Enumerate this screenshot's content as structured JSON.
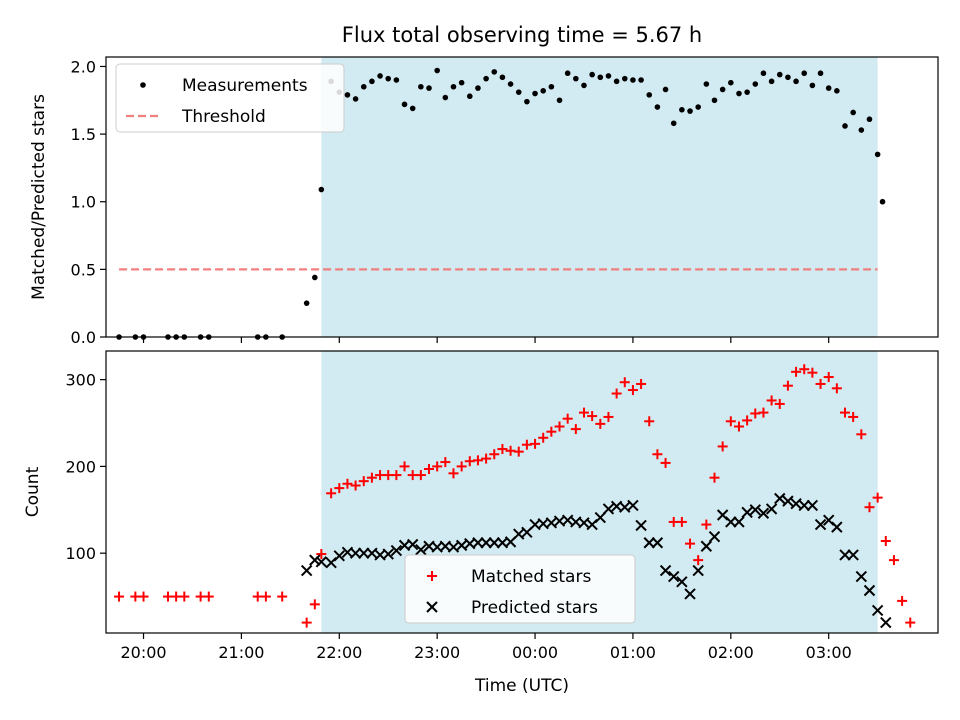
{
  "chart_data": [
    {
      "type": "scatter",
      "title": "Flux total observing time = 5.67 h",
      "xlabel": "",
      "ylabel": "Matched/Predicted stars",
      "xlim": [
        "19:37",
        "04:07"
      ],
      "ylim": [
        0,
        2.07
      ],
      "yticks": [
        "0.0",
        "0.5",
        "1.0",
        "1.5",
        "2.0"
      ],
      "shaded_region": [
        "21:49",
        "03:30"
      ],
      "shaded_color": "#add8e6",
      "legend": {
        "placement": "top-left",
        "entries": [
          "Measurements",
          "Threshold"
        ]
      },
      "threshold": {
        "name": "Threshold",
        "value": 0.5,
        "x_range": [
          "19:45",
          "03:30"
        ],
        "color": "#f08080"
      },
      "series": [
        {
          "name": "Measurements",
          "color": "#000000",
          "points": [
            [
              "19:45",
              0
            ],
            [
              "19:55",
              0
            ],
            [
              "20:00",
              0
            ],
            [
              "20:15",
              0
            ],
            [
              "20:20",
              0
            ],
            [
              "20:25",
              0
            ],
            [
              "20:35",
              0
            ],
            [
              "20:40",
              0
            ],
            [
              "21:10",
              0
            ],
            [
              "21:15",
              0
            ],
            [
              "21:25",
              0
            ],
            [
              "21:40",
              0.25
            ],
            [
              "21:45",
              0.44
            ],
            [
              "21:49",
              1.09
            ],
            [
              "21:55",
              1.89
            ],
            [
              "22:00",
              1.81
            ],
            [
              "22:05",
              1.79
            ],
            [
              "22:10",
              1.76
            ],
            [
              "22:15",
              1.85
            ],
            [
              "22:20",
              1.89
            ],
            [
              "22:25",
              1.93
            ],
            [
              "22:30",
              1.91
            ],
            [
              "22:35",
              1.9
            ],
            [
              "22:40",
              1.72
            ],
            [
              "22:45",
              1.69
            ],
            [
              "22:50",
              1.85
            ],
            [
              "22:55",
              1.84
            ],
            [
              "23:00",
              1.97
            ],
            [
              "23:05",
              1.77
            ],
            [
              "23:10",
              1.85
            ],
            [
              "23:15",
              1.88
            ],
            [
              "23:20",
              1.78
            ],
            [
              "23:25",
              1.84
            ],
            [
              "23:30",
              1.91
            ],
            [
              "23:35",
              1.96
            ],
            [
              "23:40",
              1.92
            ],
            [
              "23:45",
              1.87
            ],
            [
              "23:50",
              1.81
            ],
            [
              "23:55",
              1.74
            ],
            [
              "00:00",
              1.8
            ],
            [
              "00:05",
              1.82
            ],
            [
              "00:10",
              1.85
            ],
            [
              "00:15",
              1.75
            ],
            [
              "00:20",
              1.95
            ],
            [
              "00:25",
              1.91
            ],
            [
              "00:30",
              1.86
            ],
            [
              "00:35",
              1.94
            ],
            [
              "00:40",
              1.92
            ],
            [
              "00:45",
              1.93
            ],
            [
              "00:50",
              1.89
            ],
            [
              "00:55",
              1.91
            ],
            [
              "01:00",
              1.9
            ],
            [
              "01:05",
              1.9
            ],
            [
              "01:10",
              1.79
            ],
            [
              "01:15",
              1.7
            ],
            [
              "01:20",
              1.83
            ],
            [
              "01:25",
              1.58
            ],
            [
              "01:30",
              1.68
            ],
            [
              "01:35",
              1.67
            ],
            [
              "01:40",
              1.7
            ],
            [
              "01:45",
              1.87
            ],
            [
              "01:50",
              1.75
            ],
            [
              "01:55",
              1.83
            ],
            [
              "02:00",
              1.88
            ],
            [
              "02:05",
              1.8
            ],
            [
              "02:10",
              1.81
            ],
            [
              "02:15",
              1.87
            ],
            [
              "02:20",
              1.95
            ],
            [
              "02:25",
              1.89
            ],
            [
              "02:30",
              1.94
            ],
            [
              "02:35",
              1.92
            ],
            [
              "02:40",
              1.89
            ],
            [
              "02:45",
              1.95
            ],
            [
              "02:50",
              1.86
            ],
            [
              "02:55",
              1.95
            ],
            [
              "03:00",
              1.84
            ],
            [
              "03:05",
              1.82
            ],
            [
              "03:10",
              1.56
            ],
            [
              "03:15",
              1.66
            ],
            [
              "03:20",
              1.53
            ],
            [
              "03:25",
              1.61
            ],
            [
              "03:30",
              1.35
            ],
            [
              "03:33",
              1.0
            ]
          ]
        }
      ]
    },
    {
      "type": "scatter",
      "title": "",
      "xlabel": "Time (UTC)",
      "ylabel": "Count",
      "xlim": [
        "19:37",
        "04:07"
      ],
      "ylim": [
        8,
        333
      ],
      "yticks": [
        "100",
        "200",
        "300"
      ],
      "xticks": [
        "20:00",
        "21:00",
        "22:00",
        "23:00",
        "00:00",
        "01:00",
        "02:00",
        "03:00"
      ],
      "shaded_region": [
        "21:49",
        "03:30"
      ],
      "shaded_color": "#add8e6",
      "legend": {
        "placement": "bottom-center",
        "entries": [
          "Matched stars",
          "Predicted stars"
        ]
      },
      "series": [
        {
          "name": "Matched stars",
          "marker": "+",
          "color": "#ff0000",
          "points": [
            [
              "19:45",
              50
            ],
            [
              "19:55",
              50
            ],
            [
              "20:00",
              50
            ],
            [
              "20:15",
              50
            ],
            [
              "20:20",
              50
            ],
            [
              "20:25",
              50
            ],
            [
              "20:35",
              50
            ],
            [
              "20:40",
              50
            ],
            [
              "21:10",
              50
            ],
            [
              "21:15",
              50
            ],
            [
              "21:25",
              50
            ],
            [
              "21:40",
              20
            ],
            [
              "21:45",
              41
            ],
            [
              "21:49",
              99
            ],
            [
              "21:55",
              169
            ],
            [
              "22:00",
              175
            ],
            [
              "22:05",
              180
            ],
            [
              "22:10",
              178
            ],
            [
              "22:15",
              183
            ],
            [
              "22:20",
              187
            ],
            [
              "22:25",
              190
            ],
            [
              "22:30",
              190
            ],
            [
              "22:35",
              190
            ],
            [
              "22:40",
              200
            ],
            [
              "22:45",
              190
            ],
            [
              "22:50",
              190
            ],
            [
              "22:55",
              197
            ],
            [
              "23:00",
              200
            ],
            [
              "23:05",
              205
            ],
            [
              "23:10",
              192
            ],
            [
              "23:15",
              200
            ],
            [
              "23:20",
              206
            ],
            [
              "23:25",
              207
            ],
            [
              "23:30",
              209
            ],
            [
              "23:35",
              214
            ],
            [
              "23:40",
              220
            ],
            [
              "23:45",
              218
            ],
            [
              "23:50",
              217
            ],
            [
              "23:55",
              225
            ],
            [
              "00:00",
              226
            ],
            [
              "00:05",
              233
            ],
            [
              "00:10",
              240
            ],
            [
              "00:15",
              246
            ],
            [
              "00:20",
              255
            ],
            [
              "00:25",
              243
            ],
            [
              "00:30",
              262
            ],
            [
              "00:35",
              258
            ],
            [
              "00:40",
              249
            ],
            [
              "00:45",
              257
            ],
            [
              "00:50",
              284
            ],
            [
              "00:55",
              297
            ],
            [
              "01:00",
              288
            ],
            [
              "01:05",
              295
            ],
            [
              "01:10",
              252
            ],
            [
              "01:15",
              214
            ],
            [
              "01:20",
              204
            ],
            [
              "01:25",
              136
            ],
            [
              "01:30",
              136
            ],
            [
              "01:35",
              111
            ],
            [
              "01:40",
              92
            ],
            [
              "01:45",
              133
            ],
            [
              "01:50",
              187
            ],
            [
              "01:55",
              223
            ],
            [
              "02:00",
              252
            ],
            [
              "02:05",
              246
            ],
            [
              "02:10",
              253
            ],
            [
              "02:15",
              261
            ],
            [
              "02:20",
              262
            ],
            [
              "02:25",
              276
            ],
            [
              "02:30",
              272
            ],
            [
              "02:35",
              293
            ],
            [
              "02:40",
              309
            ],
            [
              "02:45",
              312
            ],
            [
              "02:50",
              308
            ],
            [
              "02:55",
              295
            ],
            [
              "03:00",
              303
            ],
            [
              "03:05",
              290
            ],
            [
              "03:10",
              262
            ],
            [
              "03:15",
              257
            ],
            [
              "03:20",
              237
            ],
            [
              "03:25",
              153
            ],
            [
              "03:30",
              164
            ],
            [
              "03:35",
              114
            ],
            [
              "03:40",
              92
            ],
            [
              "03:45",
              45
            ],
            [
              "03:50",
              20
            ]
          ]
        },
        {
          "name": "Predicted stars",
          "marker": "x",
          "color": "#000000",
          "points": [
            [
              "21:40",
              80
            ],
            [
              "21:45",
              92
            ],
            [
              "21:49",
              90
            ],
            [
              "21:55",
              89
            ],
            [
              "22:00",
              97
            ],
            [
              "22:05",
              101
            ],
            [
              "22:10",
              100
            ],
            [
              "22:15",
              100
            ],
            [
              "22:20",
              100
            ],
            [
              "22:25",
              98
            ],
            [
              "22:30",
              99
            ],
            [
              "22:35",
              103
            ],
            [
              "22:40",
              109
            ],
            [
              "22:45",
              110
            ],
            [
              "22:50",
              104
            ],
            [
              "22:55",
              108
            ],
            [
              "23:00",
              107
            ],
            [
              "23:05",
              108
            ],
            [
              "23:10",
              107
            ],
            [
              "23:15",
              109
            ],
            [
              "23:20",
              111
            ],
            [
              "23:25",
              112
            ],
            [
              "23:30",
              112
            ],
            [
              "23:35",
              112
            ],
            [
              "23:40",
              112
            ],
            [
              "23:45",
              113
            ],
            [
              "23:50",
              122
            ],
            [
              "23:55",
              124
            ],
            [
              "00:00",
              133
            ],
            [
              "00:05",
              134
            ],
            [
              "00:10",
              135
            ],
            [
              "00:15",
              137
            ],
            [
              "00:20",
              138
            ],
            [
              "00:25",
              136
            ],
            [
              "00:30",
              135
            ],
            [
              "00:35",
              133
            ],
            [
              "00:40",
              141
            ],
            [
              "00:45",
              151
            ],
            [
              "00:50",
              154
            ],
            [
              "00:55",
              153
            ],
            [
              "01:00",
              155
            ],
            [
              "01:05",
              132
            ],
            [
              "01:10",
              112
            ],
            [
              "01:15",
              112
            ],
            [
              "01:20",
              80
            ],
            [
              "01:25",
              73
            ],
            [
              "01:30",
              67
            ],
            [
              "01:35",
              53
            ],
            [
              "01:40",
              80
            ],
            [
              "01:45",
              108
            ],
            [
              "01:50",
              119
            ],
            [
              "01:55",
              144
            ],
            [
              "02:00",
              136
            ],
            [
              "02:05",
              136
            ],
            [
              "02:10",
              147
            ],
            [
              "02:15",
              150
            ],
            [
              "02:20",
              146
            ],
            [
              "02:25",
              151
            ],
            [
              "02:30",
              163
            ],
            [
              "02:35",
              160
            ],
            [
              "02:40",
              157
            ],
            [
              "02:45",
              155
            ],
            [
              "02:50",
              155
            ],
            [
              "02:55",
              133
            ],
            [
              "03:00",
              138
            ],
            [
              "03:05",
              130
            ],
            [
              "03:10",
              98
            ],
            [
              "03:15",
              98
            ],
            [
              "03:20",
              73
            ],
            [
              "03:25",
              57
            ],
            [
              "03:30",
              34
            ],
            [
              "03:35",
              20
            ]
          ]
        }
      ]
    }
  ]
}
